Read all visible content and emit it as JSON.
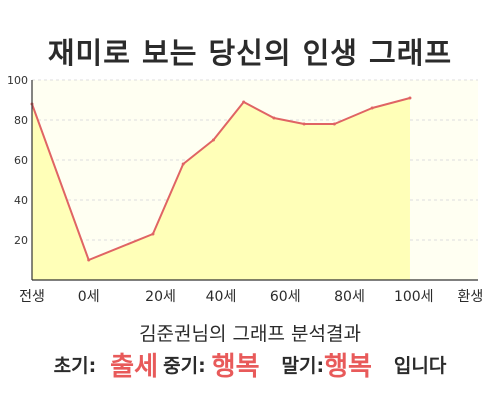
{
  "chart_data": {
    "type": "area",
    "title": "재미로 보는 당신의 인생 그래프",
    "x": [
      0,
      1.5,
      3.2,
      4,
      4.8,
      5.6,
      6.4,
      7.2,
      8,
      9,
      10
    ],
    "values": [
      88,
      10,
      23,
      58,
      70,
      89,
      81,
      78,
      78,
      86,
      91
    ],
    "x_tick_labels": [
      {
        "x": 0,
        "label": "전생"
      },
      {
        "x": 1.5,
        "label": "0세"
      },
      {
        "x": 3.4,
        "label": "20세"
      },
      {
        "x": 5.0,
        "label": "40세"
      },
      {
        "x": 6.7,
        "label": "60세"
      },
      {
        "x": 8.4,
        "label": "80세"
      },
      {
        "x": 10.1,
        "label": "100세"
      },
      {
        "x": 11.6,
        "label": "환생"
      }
    ],
    "y_ticks": [
      20,
      40,
      60,
      80,
      100
    ],
    "ylim": [
      0,
      100
    ],
    "xlim": [
      0,
      11.8
    ],
    "grid": true,
    "colors": {
      "line": "#e06464",
      "fill": "#ffffb8",
      "plot_bg": "#fffff2",
      "grid": "#dddddd"
    }
  },
  "footer": {
    "subtitle": "김준권님의 그래프 분석결과",
    "early_label": "초기:",
    "early_value": "출세",
    "middle_label": "중기:",
    "middle_value": "행복",
    "late_label": "말기:",
    "late_value": "행복",
    "ending": "입니다"
  }
}
